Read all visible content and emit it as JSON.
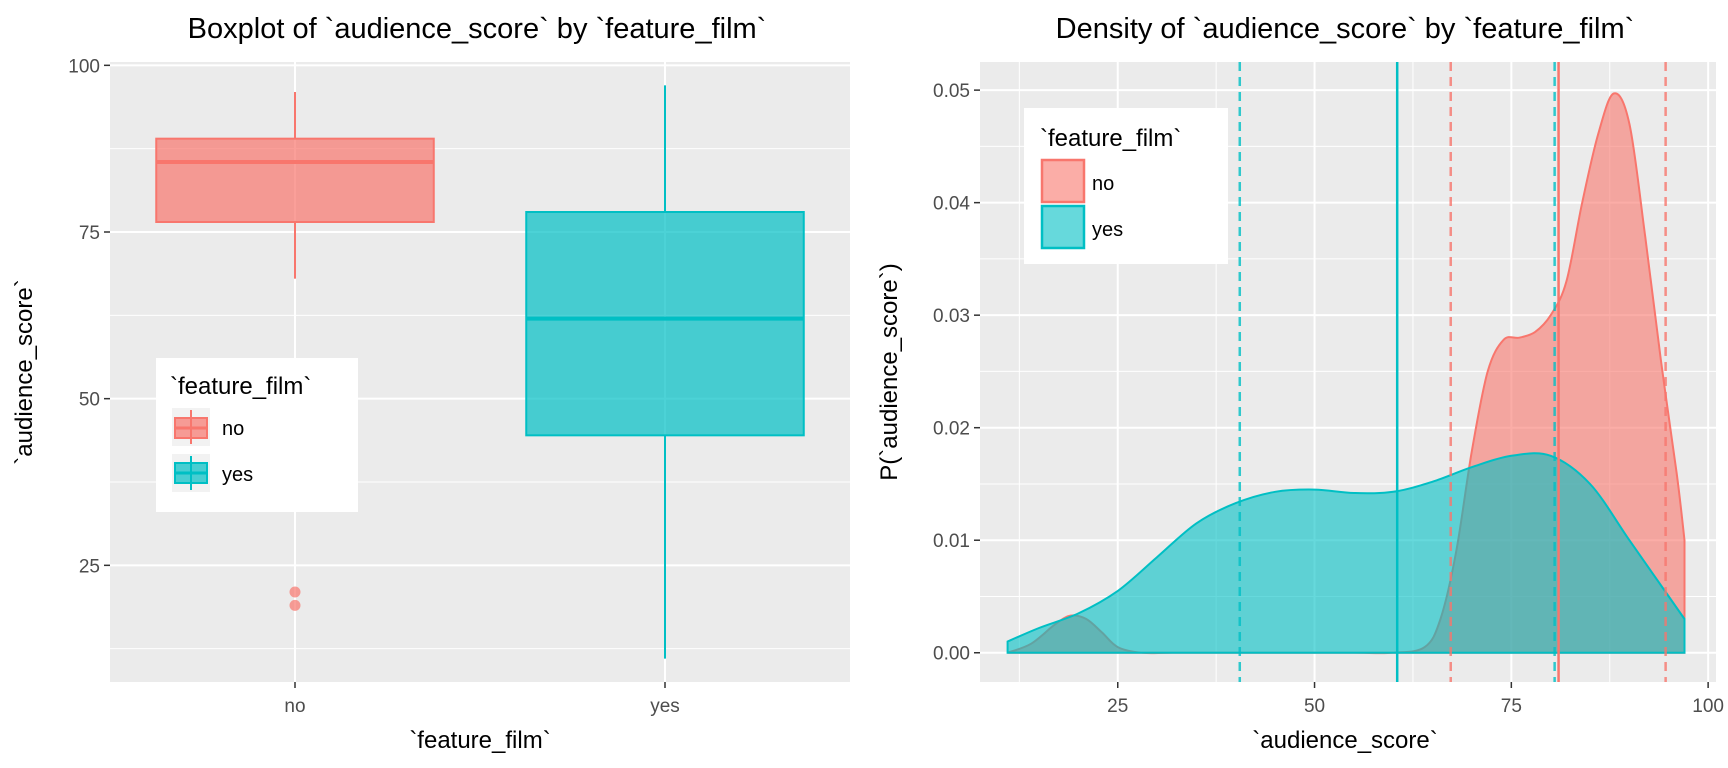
{
  "chart_data": [
    {
      "type": "boxplot",
      "title": "Boxplot of `audience_score` by `feature_film`",
      "xlabel": "`feature_film`",
      "ylabel": "`audience_score`",
      "categories": [
        "no",
        "yes"
      ],
      "ylim": [
        7.5,
        100.5
      ],
      "yticks": [
        25,
        50,
        75,
        100
      ],
      "grid": true,
      "legend": {
        "title": "`feature_film`",
        "position": "left-middle",
        "entries": [
          "no",
          "yes"
        ]
      },
      "series": [
        {
          "name": "no",
          "color": "#F8766D",
          "min": 68,
          "q1": 76.5,
          "median": 85.5,
          "q3": 89,
          "max": 96,
          "outliers": [
            19,
            21
          ]
        },
        {
          "name": "yes",
          "color": "#00BFC4",
          "min": 11,
          "q1": 44.5,
          "median": 62,
          "q3": 78,
          "max": 97,
          "outliers": []
        }
      ]
    },
    {
      "type": "area",
      "title": "Density of `audience_score` by `feature_film`",
      "xlabel": "`audience_score`",
      "ylabel": "P(`audience_score`)",
      "xlim": [
        7.5,
        101
      ],
      "ylim": [
        -0.0026,
        0.0525
      ],
      "xticks": [
        25,
        50,
        75,
        100
      ],
      "yticks": [
        0.0,
        0.01,
        0.02,
        0.03,
        0.04,
        0.05
      ],
      "ytick_labels": [
        "0.00",
        "0.01",
        "0.02",
        "0.03",
        "0.04",
        "0.05"
      ],
      "grid": true,
      "legend": {
        "title": "`feature_film`",
        "position": "top-left",
        "entries": [
          "no",
          "yes"
        ]
      },
      "series": [
        {
          "name": "no",
          "color": "#F8766D",
          "x": [
            11,
            14,
            17,
            19,
            21,
            23,
            25,
            28,
            32,
            40,
            48,
            55,
            60,
            64,
            66,
            68,
            70,
            72,
            74,
            76,
            78,
            80,
            82,
            84,
            86,
            88,
            90,
            92,
            94,
            96,
            97
          ],
          "y": [
            0.0,
            0.0008,
            0.0025,
            0.0033,
            0.003,
            0.0018,
            0.0005,
            0.0,
            0.0,
            0.0,
            0.0,
            0.0,
            0.0,
            0.0005,
            0.003,
            0.009,
            0.018,
            0.025,
            0.0278,
            0.028,
            0.0285,
            0.03,
            0.033,
            0.04,
            0.046,
            0.0497,
            0.047,
            0.037,
            0.026,
            0.016,
            0.01
          ],
          "mean": 81,
          "ci": [
            67.3,
            94.6
          ]
        },
        {
          "name": "yes",
          "color": "#00BFC4",
          "x": [
            11,
            15,
            20,
            25,
            30,
            35,
            40,
            45,
            50,
            55,
            60,
            65,
            70,
            75,
            80,
            85,
            90,
            95,
            97
          ],
          "y": [
            0.001,
            0.0022,
            0.0035,
            0.0055,
            0.0085,
            0.0115,
            0.0133,
            0.0143,
            0.0145,
            0.0142,
            0.0143,
            0.0152,
            0.0165,
            0.0175,
            0.0175,
            0.015,
            0.01,
            0.005,
            0.003
          ],
          "mean": 60.5,
          "ci": [
            40.5,
            80.5
          ]
        }
      ]
    }
  ]
}
